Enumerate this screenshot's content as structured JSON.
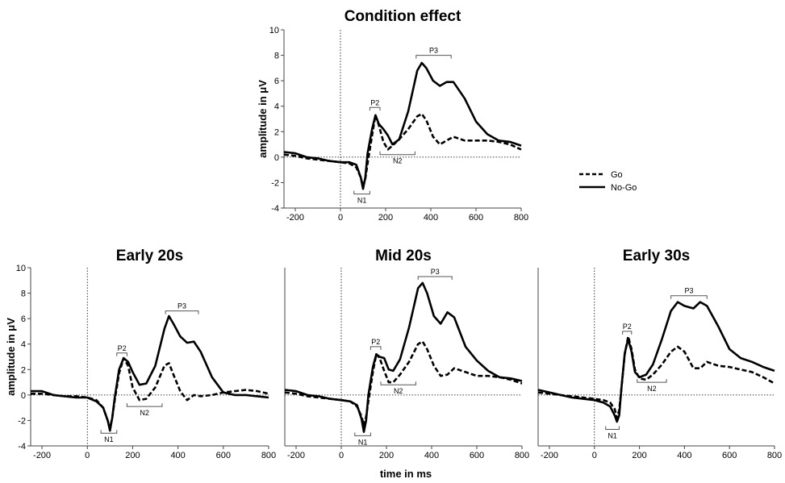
{
  "figure": {
    "legend": {
      "items": [
        "Go",
        "No-Go"
      ],
      "placement": "right of top panel"
    },
    "shared_xlabel": "time in ms"
  },
  "chart_data": [
    {
      "type": "line",
      "title": "Condition effect",
      "xlabel": "",
      "ylabel": "amplitude in μV",
      "xlim": [
        -250,
        800
      ],
      "ylim": [
        -4,
        10
      ],
      "xticks": [
        -200,
        0,
        200,
        400,
        600,
        800
      ],
      "yticks": [
        -4,
        -2,
        0,
        2,
        4,
        6,
        8,
        10
      ],
      "components": [
        {
          "label": "N1",
          "x_start": 60,
          "x_end": 130,
          "y": -2.9,
          "side": "below"
        },
        {
          "label": "P2",
          "x_start": 130,
          "x_end": 175,
          "y": 3.9,
          "side": "above"
        },
        {
          "label": "N2",
          "x_start": 175,
          "x_end": 330,
          "y": 0.2,
          "side": "below"
        },
        {
          "label": "P3",
          "x_start": 335,
          "x_end": 490,
          "y": 8.0,
          "side": "above"
        }
      ],
      "series": [
        {
          "name": "Go",
          "style": "dashed",
          "x": [
            -250,
            -200,
            -150,
            -100,
            -50,
            0,
            40,
            70,
            90,
            100,
            110,
            120,
            140,
            155,
            170,
            190,
            210,
            230,
            260,
            300,
            340,
            360,
            380,
            410,
            440,
            470,
            500,
            550,
            600,
            650,
            700,
            750,
            800
          ],
          "y": [
            0.2,
            0.1,
            -0.1,
            -0.2,
            -0.3,
            -0.4,
            -0.5,
            -0.8,
            -1.6,
            -2.3,
            -1.7,
            -0.5,
            1.7,
            3.3,
            2.5,
            1.2,
            0.6,
            0.9,
            1.4,
            2.2,
            3.2,
            3.4,
            2.9,
            1.6,
            1.0,
            1.3,
            1.6,
            1.3,
            1.3,
            1.3,
            1.2,
            1.0,
            0.6
          ]
        },
        {
          "name": "No-Go",
          "style": "solid",
          "x": [
            -250,
            -200,
            -150,
            -100,
            -50,
            0,
            40,
            70,
            90,
            100,
            110,
            120,
            140,
            155,
            170,
            190,
            210,
            230,
            260,
            300,
            340,
            360,
            380,
            410,
            440,
            470,
            500,
            550,
            600,
            650,
            700,
            750,
            800
          ],
          "y": [
            0.4,
            0.3,
            0.0,
            -0.1,
            -0.3,
            -0.4,
            -0.4,
            -0.6,
            -1.6,
            -2.5,
            -1.6,
            0.3,
            2.2,
            3.3,
            2.6,
            2.2,
            1.7,
            1.0,
            1.4,
            3.6,
            6.8,
            7.4,
            7.0,
            6.0,
            5.6,
            5.9,
            5.9,
            4.6,
            2.8,
            1.8,
            1.3,
            1.2,
            0.9
          ]
        }
      ]
    },
    {
      "type": "line",
      "title": "Early 20s",
      "xlabel": "",
      "ylabel": "amplitude in μV",
      "xlim": [
        -250,
        800
      ],
      "ylim": [
        -4,
        10
      ],
      "xticks": [
        -200,
        0,
        200,
        400,
        600,
        800
      ],
      "yticks": [
        -4,
        -2,
        0,
        2,
        4,
        6,
        8,
        10
      ],
      "components": [
        {
          "label": "N1",
          "x_start": 60,
          "x_end": 130,
          "y": -3.0,
          "side": "below"
        },
        {
          "label": "P2",
          "x_start": 130,
          "x_end": 175,
          "y": 3.3,
          "side": "above"
        },
        {
          "label": "N2",
          "x_start": 175,
          "x_end": 330,
          "y": -0.9,
          "side": "below"
        },
        {
          "label": "P3",
          "x_start": 345,
          "x_end": 490,
          "y": 6.6,
          "side": "above"
        }
      ],
      "series": [
        {
          "name": "Go",
          "style": "dashed",
          "x": [
            -250,
            -200,
            -150,
            -100,
            -50,
            0,
            40,
            70,
            90,
            100,
            110,
            120,
            140,
            160,
            180,
            200,
            230,
            260,
            300,
            340,
            360,
            380,
            410,
            440,
            470,
            500,
            550,
            600,
            650,
            700,
            750,
            800
          ],
          "y": [
            0.1,
            0.1,
            0.0,
            -0.1,
            -0.1,
            -0.2,
            -0.4,
            -1.0,
            -2.0,
            -2.6,
            -1.8,
            -0.5,
            1.7,
            2.9,
            2.3,
            0.6,
            -0.4,
            -0.3,
            0.6,
            2.3,
            2.5,
            1.6,
            0.3,
            -0.4,
            0.0,
            -0.1,
            0.0,
            0.2,
            0.3,
            0.4,
            0.3,
            0.1
          ]
        },
        {
          "name": "No-Go",
          "style": "solid",
          "x": [
            -250,
            -200,
            -150,
            -100,
            -50,
            0,
            40,
            70,
            90,
            100,
            110,
            120,
            140,
            160,
            180,
            200,
            230,
            260,
            300,
            340,
            360,
            380,
            410,
            440,
            470,
            500,
            550,
            600,
            650,
            700,
            750,
            800
          ],
          "y": [
            0.3,
            0.3,
            0.0,
            -0.1,
            -0.2,
            -0.2,
            -0.5,
            -1.0,
            -2.0,
            -2.8,
            -1.8,
            -0.3,
            2.0,
            2.9,
            2.6,
            1.8,
            0.8,
            0.9,
            2.3,
            5.2,
            6.2,
            5.6,
            4.6,
            4.1,
            4.2,
            3.4,
            1.4,
            0.2,
            0.0,
            0.0,
            -0.1,
            -0.2
          ]
        }
      ]
    },
    {
      "type": "line",
      "title": "Mid 20s",
      "xlabel": "",
      "ylabel": "",
      "xlim": [
        -250,
        800
      ],
      "ylim": [
        -4,
        10
      ],
      "xticks": [
        -200,
        0,
        200,
        400,
        600,
        800
      ],
      "yticks": [],
      "components": [
        {
          "label": "N1",
          "x_start": 60,
          "x_end": 130,
          "y": -3.2,
          "side": "below"
        },
        {
          "label": "P2",
          "x_start": 130,
          "x_end": 175,
          "y": 3.8,
          "side": "above"
        },
        {
          "label": "N2",
          "x_start": 175,
          "x_end": 330,
          "y": 0.8,
          "side": "below"
        },
        {
          "label": "P3",
          "x_start": 340,
          "x_end": 490,
          "y": 9.3,
          "side": "above"
        }
      ],
      "series": [
        {
          "name": "Go",
          "style": "dashed",
          "x": [
            -250,
            -200,
            -150,
            -100,
            -50,
            0,
            40,
            70,
            90,
            100,
            110,
            120,
            140,
            155,
            170,
            190,
            210,
            230,
            260,
            300,
            340,
            360,
            380,
            410,
            440,
            470,
            500,
            550,
            600,
            650,
            700,
            750,
            800
          ],
          "y": [
            0.2,
            0.1,
            -0.1,
            -0.2,
            -0.3,
            -0.4,
            -0.5,
            -0.9,
            -1.7,
            -2.4,
            -1.7,
            -0.5,
            1.8,
            3.2,
            2.9,
            1.9,
            1.0,
            1.0,
            1.6,
            2.6,
            4.0,
            4.2,
            3.6,
            2.3,
            1.5,
            1.6,
            2.1,
            1.8,
            1.5,
            1.5,
            1.4,
            1.2,
            0.9
          ]
        },
        {
          "name": "No-Go",
          "style": "solid",
          "x": [
            -250,
            -200,
            -150,
            -100,
            -50,
            0,
            40,
            70,
            90,
            100,
            110,
            120,
            140,
            155,
            170,
            190,
            210,
            230,
            260,
            300,
            340,
            360,
            380,
            410,
            440,
            470,
            500,
            550,
            600,
            650,
            700,
            750,
            800
          ],
          "y": [
            0.4,
            0.3,
            0.0,
            -0.1,
            -0.3,
            -0.4,
            -0.5,
            -0.8,
            -1.9,
            -2.9,
            -2.0,
            0.0,
            2.2,
            3.2,
            3.0,
            2.9,
            2.0,
            1.9,
            2.8,
            5.3,
            8.4,
            8.8,
            8.0,
            6.2,
            5.6,
            6.5,
            6.1,
            3.8,
            2.7,
            1.9,
            1.4,
            1.3,
            1.1
          ]
        }
      ]
    },
    {
      "type": "line",
      "title": "Early 30s",
      "xlabel": "",
      "ylabel": "",
      "xlim": [
        -250,
        800
      ],
      "ylim": [
        -4,
        10
      ],
      "xticks": [
        -200,
        0,
        200,
        400,
        600,
        800
      ],
      "yticks": [],
      "components": [
        {
          "label": "N1",
          "x_start": 50,
          "x_end": 110,
          "y": -2.7,
          "side": "below"
        },
        {
          "label": "P2",
          "x_start": 125,
          "x_end": 165,
          "y": 5.0,
          "side": "above"
        },
        {
          "label": "N2",
          "x_start": 190,
          "x_end": 320,
          "y": 1.0,
          "side": "below"
        },
        {
          "label": "P3",
          "x_start": 340,
          "x_end": 500,
          "y": 7.8,
          "side": "above"
        }
      ],
      "series": [
        {
          "name": "Go",
          "style": "dashed",
          "x": [
            -250,
            -200,
            -150,
            -100,
            -50,
            0,
            40,
            70,
            90,
            100,
            110,
            120,
            135,
            150,
            165,
            180,
            200,
            230,
            260,
            300,
            340,
            370,
            400,
            440,
            470,
            500,
            550,
            600,
            650,
            700,
            750,
            800
          ],
          "y": [
            0.2,
            0.1,
            0.0,
            -0.1,
            -0.2,
            -0.3,
            -0.4,
            -0.6,
            -1.1,
            -1.8,
            -1.2,
            0.5,
            3.2,
            4.6,
            3.6,
            2.0,
            1.3,
            1.2,
            1.6,
            2.4,
            3.4,
            3.8,
            3.4,
            2.1,
            2.1,
            2.6,
            2.3,
            2.2,
            2.0,
            1.8,
            1.4,
            0.9
          ]
        },
        {
          "name": "No-Go",
          "style": "solid",
          "x": [
            -250,
            -200,
            -150,
            -100,
            -50,
            0,
            40,
            70,
            90,
            100,
            110,
            120,
            135,
            150,
            165,
            180,
            200,
            230,
            260,
            300,
            340,
            370,
            400,
            440,
            470,
            500,
            550,
            600,
            650,
            700,
            750,
            800
          ],
          "y": [
            0.4,
            0.2,
            0.0,
            -0.2,
            -0.3,
            -0.4,
            -0.6,
            -0.9,
            -1.6,
            -2.1,
            -1.6,
            0.5,
            3.3,
            4.4,
            3.4,
            1.8,
            1.4,
            1.6,
            2.4,
            4.4,
            6.6,
            7.3,
            7.0,
            6.8,
            7.3,
            7.0,
            5.4,
            3.6,
            2.9,
            2.6,
            2.2,
            1.9
          ]
        }
      ]
    }
  ]
}
